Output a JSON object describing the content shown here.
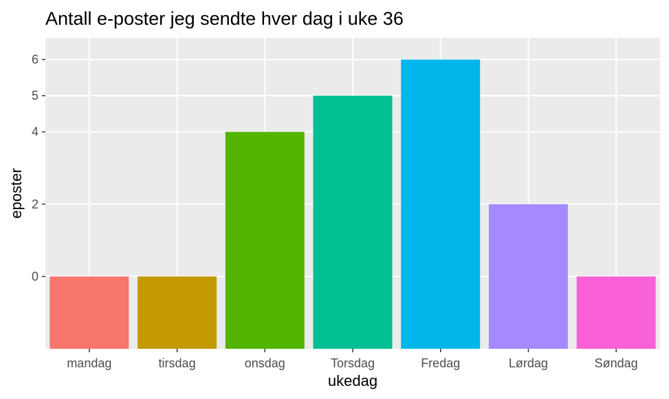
{
  "chart_data": {
    "type": "bar",
    "title": "Antall e-poster jeg sendte hver dag i uke 36",
    "xlabel": "ukedag",
    "ylabel": "eposter",
    "categories": [
      "mandag",
      "tirsdag",
      "onsdag",
      "Torsdag",
      "Fredag",
      "Lørdag",
      "Søndag"
    ],
    "values": [
      0,
      0,
      4,
      5,
      6,
      2,
      0
    ],
    "bar_baseline": -2,
    "colors": [
      "#F8766D",
      "#C49A00",
      "#53B400",
      "#00C094",
      "#00B6EB",
      "#A58AFF",
      "#FB61D7"
    ],
    "y_ticks": [
      0,
      2,
      4,
      5,
      6
    ],
    "ylim": [
      -2,
      6.6
    ],
    "grid": true,
    "legend": "none"
  }
}
